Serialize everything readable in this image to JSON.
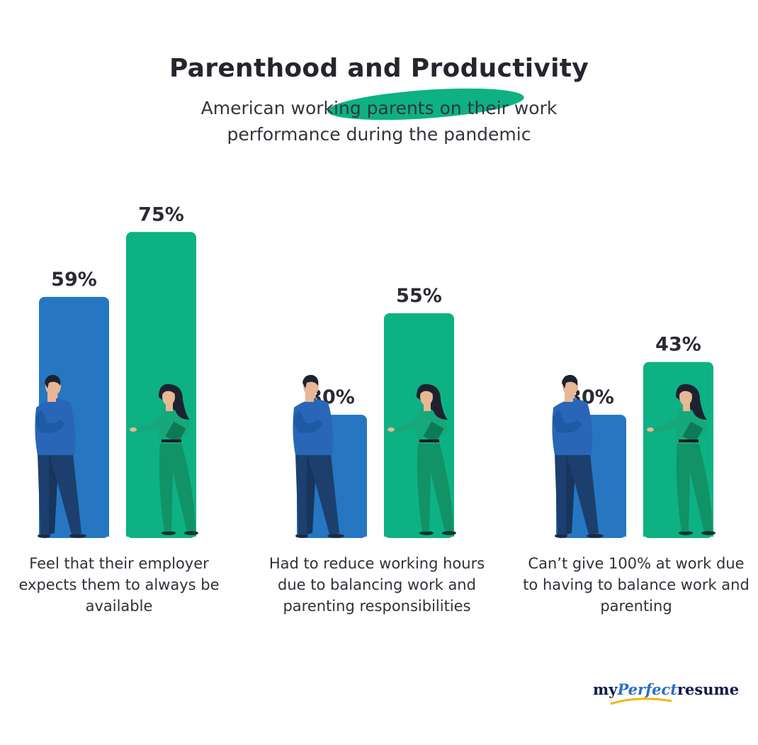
{
  "title": "Parenthood and Productivity",
  "subtitle": "American working parents on their work performance during the pandemic",
  "logo": {
    "part1": "my",
    "part2": "Perfect",
    "part3": "resume"
  },
  "colors": {
    "blue": "#2676c2",
    "green": "#0db184",
    "highlight": "#0db184"
  },
  "chart_data": {
    "type": "bar",
    "categories": [
      "Feel that their employer expects them to always be available",
      "Had to reduce working hours due to balancing work and parenting responsibilities",
      "Can’t give 100% at work due to having to balance work and parenting"
    ],
    "series": [
      {
        "values": [
          59,
          30,
          30
        ],
        "labels": [
          "59%",
          "30%",
          "30%"
        ],
        "color": "#2676c2",
        "icon": "man-thinking-icon"
      },
      {
        "values": [
          75,
          55,
          43
        ],
        "labels": [
          "75%",
          "55%",
          "43%"
        ],
        "color": "#0db184",
        "icon": "woman-presenting-icon"
      }
    ],
    "unit": "%",
    "grid": false,
    "legend": "none"
  }
}
